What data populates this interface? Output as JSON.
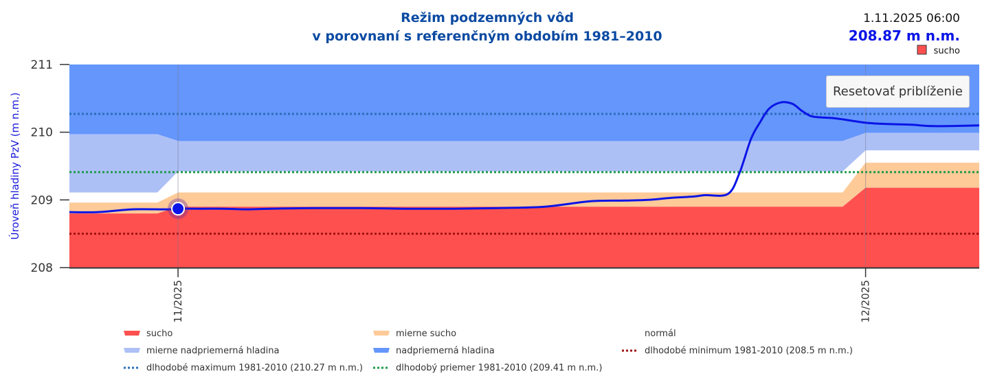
{
  "chart_data": {
    "type": "area",
    "title": "Režim podzemných vôd",
    "subtitle": "v porovnaní s referenčným obdobím 1981–2010",
    "ylabel": "Úroveň hladiny PzV (m n.m.)",
    "xlabel": "",
    "ylim": [
      208,
      211
    ],
    "yticks": [
      "208",
      "209",
      "210",
      "211"
    ],
    "ytick_values": [
      208,
      209,
      210,
      211
    ],
    "x_unit": "days since 1.11.2025",
    "xlim": [
      -4.74,
      34.96
    ],
    "xticks": [
      {
        "value": 0,
        "label": "11/2025"
      },
      {
        "value": 30,
        "label": "12/2025"
      }
    ],
    "grid": false,
    "bands": {
      "x": [
        -4.74,
        -0.9,
        0,
        29.0,
        30,
        34.96
      ],
      "sucho_top": [
        208.8,
        208.8,
        208.9,
        208.9,
        209.18,
        209.18
      ],
      "mierne_sucho_top": [
        208.96,
        208.96,
        209.11,
        209.11,
        209.55,
        209.55
      ],
      "normal_top": [
        209.11,
        209.11,
        209.42,
        209.42,
        209.73,
        209.73
      ],
      "mierne_nadpriemerna_top": [
        209.97,
        209.97,
        209.87,
        209.87,
        209.99,
        209.99
      ],
      "nadpriemerna_top": [
        211,
        211,
        211,
        211,
        211,
        211
      ]
    },
    "series": [
      {
        "name": "Úroveň hladiny PzV",
        "color": "#0a14e6",
        "x": [
          -4.74,
          -3.5,
          -2,
          -0.5,
          0,
          1,
          2,
          3,
          4,
          6,
          8,
          10,
          12,
          14,
          16,
          18,
          19.5,
          20.5,
          21.5,
          22.5,
          23,
          24,
          24.5,
          25,
          25.4,
          25.8,
          26.3,
          26.8,
          27.2,
          27.6,
          28,
          28.5,
          29,
          30,
          31,
          32,
          33,
          34.96
        ],
        "values": [
          208.82,
          208.82,
          208.86,
          208.86,
          208.87,
          208.87,
          208.87,
          208.86,
          208.87,
          208.88,
          208.88,
          208.87,
          208.87,
          208.88,
          208.9,
          208.98,
          208.99,
          209.0,
          209.03,
          209.05,
          209.07,
          209.09,
          209.4,
          209.9,
          210.15,
          210.35,
          210.44,
          210.42,
          210.32,
          210.24,
          210.22,
          210.21,
          210.19,
          210.14,
          210.12,
          210.11,
          210.09,
          210.1
        ]
      }
    ],
    "reference_lines": [
      {
        "name": "dlhodobé maximum 1981-2010",
        "value": 210.27,
        "color": "#2a6fb8",
        "style": "dotted"
      },
      {
        "name": "dlhodobý priemer 1981-2010",
        "value": 209.41,
        "color": "#1d9a4a",
        "style": "dotted"
      },
      {
        "name": "dlhodobé minimum 1981-2010",
        "value": 208.5,
        "color": "#a01010",
        "style": "dotted"
      }
    ],
    "highlight_point": {
      "x": 0,
      "y": 208.87
    },
    "legend_position": "bottom",
    "legend": [
      {
        "label": "sucho",
        "type": "area",
        "color": "#ff5050"
      },
      {
        "label": "mierne sucho",
        "type": "area",
        "color": "#fdca98"
      },
      {
        "label": "normál",
        "type": "area",
        "color": "#ffffff"
      },
      {
        "label": "mierne nadpriemerná hladina",
        "type": "area",
        "color": "#adc0f6"
      },
      {
        "label": "nadpriemerná hladina",
        "type": "area",
        "color": "#6496fc"
      },
      {
        "label": "dlhodobé minimum 1981-2010 (208.5 m n.m.)",
        "type": "dotted",
        "color": "#a01010"
      },
      {
        "label": "dlhodobé maximum 1981-2010 (210.27 m n.m.)",
        "type": "dotted",
        "color": "#2a6fb8"
      },
      {
        "label": "dlhodobý priemer 1981-2010 (209.41 m n.m.)",
        "type": "dotted",
        "color": "#1d9a4a"
      }
    ]
  },
  "tooltip": {
    "date": "1.11.2025 06:00",
    "value": "208.87 m n.m.",
    "category": "sucho",
    "category_color": "#ff5050"
  },
  "controls": {
    "reset_zoom_label": "Resetovať priblíženie"
  },
  "colors": {
    "sucho": "#ff5050",
    "mierne_sucho": "#fdca98",
    "normal": "#ffffff",
    "mierne_nadpriemerna": "#adc0f6",
    "nadpriemerna": "#6496fc",
    "line": "#0a14e6",
    "title": "#0b4aa2"
  }
}
